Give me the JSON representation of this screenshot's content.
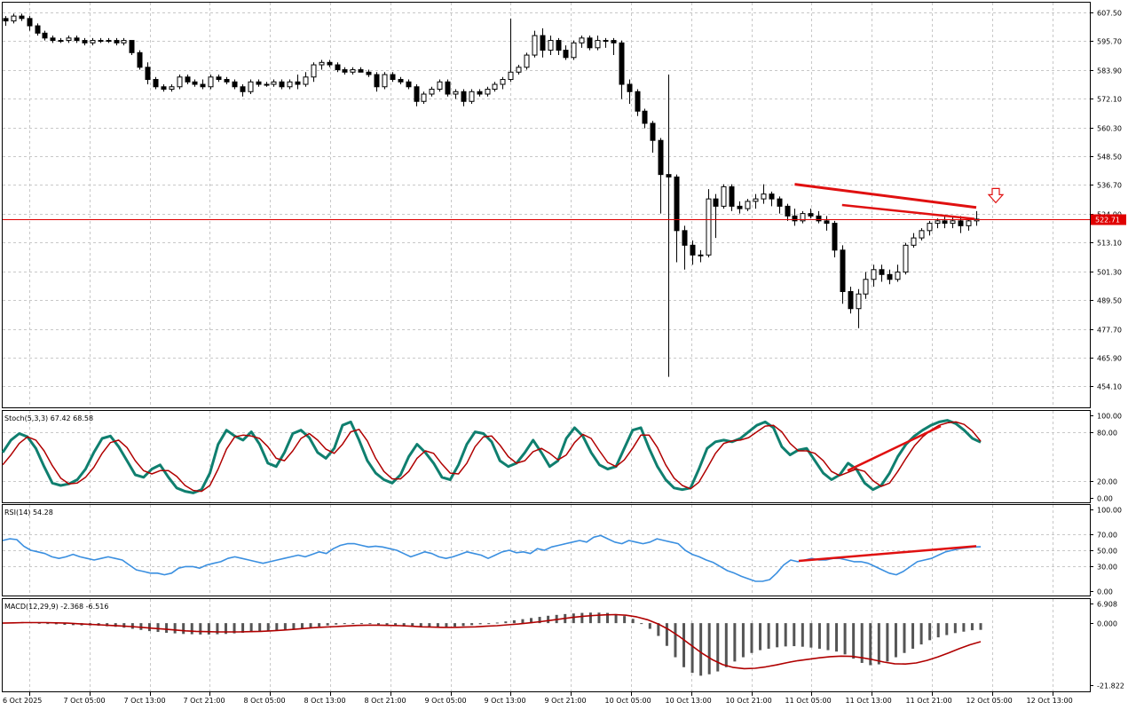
{
  "chart_data": {
    "type": "candlestick",
    "symbol_panel": {
      "price_axis_ticks": [
        "607.50",
        "595.70",
        "583.90",
        "572.10",
        "560.30",
        "548.50",
        "536.70",
        "524.90",
        "513.10",
        "501.30",
        "489.50",
        "477.70",
        "465.90",
        "454.10"
      ],
      "current_price": "522.71",
      "current_price_value": 522.71,
      "ylim": [
        445.5,
        611.5
      ],
      "grid": true,
      "candles": [
        [
          605,
          606,
          602,
          604
        ],
        [
          604,
          607,
          603,
          606
        ],
        [
          606,
          607,
          604,
          605
        ],
        [
          605,
          606,
          600,
          602
        ],
        [
          602,
          603,
          598,
          599
        ],
        [
          599,
          600,
          596,
          597
        ],
        [
          597,
          598,
          595,
          596
        ],
        [
          596,
          597,
          595,
          596
        ],
        [
          596,
          598,
          595,
          597
        ],
        [
          597,
          598,
          595,
          596
        ],
        [
          596,
          597,
          594,
          595
        ],
        [
          595,
          597,
          594,
          596
        ],
        [
          596,
          597,
          595,
          596
        ],
        [
          596,
          597,
          595,
          596
        ],
        [
          596,
          597,
          594,
          595
        ],
        [
          595,
          597,
          594,
          596
        ],
        [
          596,
          596,
          590,
          591
        ],
        [
          591,
          592,
          584,
          585
        ],
        [
          585,
          587,
          578,
          580
        ],
        [
          580,
          581,
          576,
          577
        ],
        [
          577,
          578,
          575,
          576
        ],
        [
          576,
          578,
          575,
          577
        ],
        [
          577,
          582,
          576,
          581
        ],
        [
          581,
          582,
          578,
          579
        ],
        [
          579,
          580,
          577,
          578
        ],
        [
          578,
          580,
          576,
          577
        ],
        [
          577,
          582,
          576,
          581
        ],
        [
          581,
          582,
          579,
          580
        ],
        [
          580,
          581,
          578,
          579
        ],
        [
          579,
          580,
          576,
          577
        ],
        [
          577,
          578,
          573,
          575
        ],
        [
          575,
          580,
          574,
          579
        ],
        [
          579,
          580,
          577,
          578
        ],
        [
          578,
          579,
          577,
          578
        ],
        [
          578,
          580,
          577,
          579
        ],
        [
          579,
          580,
          576,
          577
        ],
        [
          577,
          580,
          576,
          579
        ],
        [
          579,
          582,
          576,
          578
        ],
        [
          578,
          583,
          577,
          581
        ],
        [
          581,
          587,
          579,
          586
        ],
        [
          586,
          588,
          584,
          587
        ],
        [
          587,
          588,
          585,
          586
        ],
        [
          586,
          587,
          583,
          584
        ],
        [
          584,
          585,
          582,
          583
        ],
        [
          583,
          585,
          582,
          584
        ],
        [
          584,
          585,
          583,
          583
        ],
        [
          583,
          584,
          581,
          582
        ],
        [
          582,
          583,
          575,
          577
        ],
        [
          577,
          583,
          576,
          582
        ],
        [
          582,
          583,
          579,
          580
        ],
        [
          580,
          581,
          578,
          579
        ],
        [
          579,
          580,
          576,
          577
        ],
        [
          577,
          578,
          569,
          571
        ],
        [
          571,
          575,
          570,
          574
        ],
        [
          574,
          577,
          573,
          576
        ],
        [
          576,
          580,
          575,
          579
        ],
        [
          579,
          580,
          573,
          574
        ],
        [
          574,
          576,
          572,
          575
        ],
        [
          575,
          576,
          569,
          571
        ],
        [
          571,
          576,
          570,
          575
        ],
        [
          575,
          576,
          573,
          574
        ],
        [
          574,
          577,
          573,
          576
        ],
        [
          576,
          579,
          575,
          578
        ],
        [
          578,
          581,
          576,
          580
        ],
        [
          580,
          605,
          579,
          583
        ],
        [
          583,
          586,
          582,
          585
        ],
        [
          585,
          591,
          584,
          590
        ],
        [
          590,
          600,
          589,
          598
        ],
        [
          598,
          601,
          589,
          592
        ],
        [
          592,
          598,
          590,
          596
        ],
        [
          596,
          597,
          590,
          592
        ],
        [
          592,
          594,
          588,
          589
        ],
        [
          589,
          596,
          588,
          595
        ],
        [
          595,
          598,
          593,
          597
        ],
        [
          597,
          598,
          592,
          593
        ],
        [
          593,
          598,
          592,
          596
        ],
        [
          596,
          597,
          593,
          596
        ],
        [
          596,
          597,
          590,
          595
        ],
        [
          595,
          596,
          572,
          578
        ],
        [
          578,
          580,
          570,
          575
        ],
        [
          575,
          576,
          565,
          567
        ],
        [
          567,
          568,
          560,
          562
        ],
        [
          562,
          563,
          550,
          555
        ],
        [
          555,
          556,
          525,
          541
        ],
        [
          541,
          582,
          458,
          540
        ],
        [
          540,
          541,
          505,
          518
        ],
        [
          518,
          520,
          502,
          512
        ],
        [
          512,
          514,
          504,
          508
        ],
        [
          508,
          510,
          505,
          508
        ],
        [
          508,
          535,
          507,
          531
        ],
        [
          531,
          533,
          515,
          528
        ],
        [
          528,
          537,
          527,
          536
        ],
        [
          536,
          537,
          526,
          528
        ],
        [
          528,
          530,
          525,
          527
        ],
        [
          527,
          531,
          526,
          530
        ],
        [
          530,
          533,
          527,
          531
        ],
        [
          531,
          537,
          529,
          533
        ],
        [
          533,
          534,
          528,
          531
        ],
        [
          531,
          532,
          525,
          528
        ],
        [
          528,
          529,
          522,
          524
        ],
        [
          524,
          527,
          520,
          522
        ],
        [
          522,
          526,
          521,
          525
        ],
        [
          525,
          527,
          523,
          524
        ],
        [
          524,
          526,
          521,
          522
        ],
        [
          522,
          524,
          518,
          521
        ],
        [
          521,
          522,
          507,
          510
        ],
        [
          510,
          512,
          488,
          493
        ],
        [
          493,
          495,
          484,
          486
        ],
        [
          486,
          494,
          478,
          492
        ],
        [
          492,
          501,
          490,
          498
        ],
        [
          498,
          504,
          495,
          502
        ],
        [
          502,
          504,
          497,
          500
        ],
        [
          500,
          502,
          496,
          498
        ],
        [
          498,
          504,
          497,
          501
        ],
        [
          501,
          513,
          500,
          512
        ],
        [
          512,
          517,
          511,
          515
        ],
        [
          515,
          519,
          514,
          518
        ],
        [
          518,
          522,
          516,
          521
        ],
        [
          521,
          523,
          519,
          522
        ],
        [
          522,
          524,
          519,
          521
        ],
        [
          521,
          524,
          519,
          522
        ],
        [
          522,
          524,
          517,
          520
        ],
        [
          520,
          523,
          518,
          522
        ],
        [
          522,
          526,
          520,
          522.71
        ]
      ],
      "annotations": [
        "red bearish trend line (price)",
        "red arrow down marker"
      ]
    },
    "stochastic": {
      "label": "Stoch(5,3,3) 67.42 68.58",
      "axis_ticks": [
        "100.00",
        "80.00",
        "20.00",
        "0.00"
      ],
      "ylim": [
        0,
        100
      ],
      "main_color": "#0f7f6f",
      "signal_color": "#b00000",
      "main": [
        55,
        70,
        78,
        74,
        60,
        38,
        18,
        15,
        17,
        22,
        35,
        55,
        72,
        75,
        62,
        45,
        28,
        25,
        35,
        40,
        25,
        12,
        8,
        6,
        10,
        30,
        65,
        82,
        75,
        70,
        80,
        65,
        42,
        38,
        55,
        78,
        82,
        73,
        55,
        48,
        60,
        88,
        92,
        70,
        45,
        30,
        22,
        18,
        28,
        50,
        65,
        55,
        42,
        25,
        22,
        40,
        65,
        80,
        78,
        68,
        45,
        38,
        42,
        55,
        70,
        55,
        38,
        45,
        72,
        85,
        75,
        55,
        40,
        35,
        38,
        60,
        82,
        85,
        60,
        38,
        22,
        12,
        10,
        12,
        35,
        60,
        68,
        70,
        68,
        72,
        80,
        88,
        92,
        85,
        62,
        52,
        58,
        60,
        45,
        30,
        22,
        28,
        42,
        35,
        18,
        10,
        15,
        30,
        50,
        65,
        75,
        82,
        88,
        92,
        94,
        90,
        82,
        72,
        67.42
      ],
      "signal": [
        40,
        52,
        66,
        74,
        70,
        57,
        39,
        24,
        17,
        18,
        25,
        37,
        54,
        67,
        70,
        61,
        45,
        33,
        29,
        33,
        33,
        26,
        15,
        9,
        8,
        15,
        35,
        59,
        74,
        76,
        75,
        72,
        62,
        48,
        45,
        57,
        72,
        78,
        70,
        59,
        54,
        65,
        80,
        83,
        69,
        48,
        32,
        23,
        23,
        32,
        48,
        57,
        54,
        41,
        30,
        29,
        42,
        62,
        74,
        75,
        64,
        50,
        42,
        45,
        56,
        60,
        54,
        46,
        52,
        67,
        77,
        72,
        57,
        43,
        38,
        46,
        60,
        76,
        76,
        61,
        40,
        24,
        15,
        11,
        19,
        36,
        54,
        66,
        69,
        70,
        73,
        80,
        87,
        88,
        80,
        66,
        57,
        57,
        54,
        45,
        32,
        27,
        31,
        35,
        32,
        21,
        14,
        18,
        32,
        48,
        63,
        74,
        82,
        88,
        91,
        92,
        89,
        81,
        68.58
      ]
    },
    "rsi": {
      "label": "RSI(14) 54.28",
      "axis_ticks": [
        "100.00",
        "70.00",
        "50.00",
        "30.00",
        "0.00"
      ],
      "ylim": [
        0,
        100
      ],
      "color": "#3a8fe0",
      "values": [
        62,
        64,
        63,
        55,
        50,
        48,
        46,
        42,
        40,
        42,
        45,
        42,
        40,
        38,
        40,
        42,
        40,
        38,
        32,
        26,
        24,
        22,
        22,
        20,
        22,
        28,
        30,
        30,
        28,
        32,
        34,
        36,
        40,
        42,
        40,
        38,
        36,
        34,
        36,
        38,
        40,
        42,
        44,
        42,
        45,
        48,
        46,
        52,
        56,
        58,
        58,
        56,
        54,
        55,
        54,
        52,
        50,
        46,
        42,
        45,
        48,
        46,
        42,
        40,
        42,
        45,
        48,
        46,
        44,
        40,
        44,
        48,
        50,
        47,
        48,
        46,
        52,
        50,
        54,
        56,
        58,
        60,
        62,
        60,
        66,
        68,
        64,
        60,
        58,
        62,
        60,
        58,
        60,
        64,
        62,
        60,
        58,
        50,
        45,
        42,
        38,
        35,
        30,
        25,
        22,
        18,
        15,
        12,
        12,
        14,
        22,
        32,
        38,
        36,
        38,
        40,
        38,
        38,
        40,
        40,
        38,
        36,
        36,
        34,
        30,
        26,
        22,
        20,
        24,
        30,
        36,
        38,
        40,
        44,
        48,
        50,
        52,
        53,
        54,
        54.28
      ],
      "annotations": [
        "red bullish trend line (RSI divergence)"
      ]
    },
    "macd": {
      "label": "MACD(12,29,9) -2.368 -6.516",
      "axis_ticks": [
        "6.908",
        "0.000",
        "-21.822"
      ],
      "ylim": [
        -21.822,
        6.908
      ],
      "histogram_color": "#555555",
      "signal_color": "#b00000",
      "histogram": [
        0.2,
        0.3,
        0.4,
        0.3,
        0.1,
        -0.2,
        -0.4,
        -0.6,
        -0.7,
        -0.8,
        -0.8,
        -0.9,
        -1.1,
        -1.3,
        -1.6,
        -2,
        -2.4,
        -2.8,
        -3.1,
        -3.4,
        -3.6,
        -3.8,
        -3.9,
        -4,
        -4,
        -3.9,
        -3.8,
        -3.6,
        -3.4,
        -3.2,
        -3,
        -2.8,
        -2.6,
        -2.5,
        -2.3,
        -2,
        -1.6,
        -1.2,
        -0.8,
        -0.5,
        -0.3,
        -0.2,
        -0.2,
        -0.3,
        -0.5,
        -0.8,
        -1,
        -1.2,
        -1.3,
        -1.4,
        -1.5,
        -1.5,
        -1.4,
        -1.2,
        -1,
        -0.7,
        -0.4,
        -0.1,
        0.2,
        0.6,
        1,
        1.4,
        1.8,
        2.2,
        2.6,
        2.9,
        3.2,
        3.4,
        3.6,
        3.7,
        3.7,
        3.6,
        3.2,
        2.5,
        1.5,
        0,
        -2,
        -4.5,
        -8,
        -12,
        -15.5,
        -17.5,
        -18.5,
        -18,
        -17,
        -15.5,
        -13.5,
        -12,
        -10.5,
        -9.5,
        -9,
        -8.5,
        -8.2,
        -8.1,
        -8.3,
        -8.6,
        -9,
        -9.5,
        -10,
        -11,
        -12.5,
        -14,
        -14.8,
        -14.5,
        -13.5,
        -12,
        -10.5,
        -9,
        -7.5,
        -6,
        -5,
        -4.2,
        -3.5,
        -3,
        -2.5,
        -2.368
      ],
      "signal": [
        0,
        0.1,
        0.2,
        0.2,
        0.2,
        0.1,
        0,
        -0.2,
        -0.4,
        -0.6,
        -0.8,
        -1,
        -1.2,
        -1.5,
        -1.8,
        -2.1,
        -2.4,
        -2.7,
        -2.9,
        -3,
        -3.1,
        -3.1,
        -3.1,
        -3,
        -2.9,
        -2.7,
        -2.5,
        -2.2,
        -1.9,
        -1.6,
        -1.4,
        -1.2,
        -1,
        -0.8,
        -0.7,
        -0.7,
        -0.8,
        -0.9,
        -1.1,
        -1.3,
        -1.4,
        -1.5,
        -1.5,
        -1.4,
        -1.3,
        -1.1,
        -0.9,
        -0.6,
        -0.3,
        0.1,
        0.5,
        1,
        1.5,
        2,
        2.4,
        2.7,
        2.9,
        3,
        2.8,
        2.2,
        1.2,
        -0.3,
        -2.3,
        -4.8,
        -7.6,
        -10.4,
        -12.8,
        -14.6,
        -15.6,
        -16,
        -15.9,
        -15.4,
        -14.7,
        -13.9,
        -13.2,
        -12.7,
        -12.2,
        -11.8,
        -11.6,
        -11.7,
        -12.2,
        -12.9,
        -13.7,
        -14.3,
        -14.4,
        -14,
        -13.1,
        -11.9,
        -10.5,
        -9,
        -7.6,
        -6.516
      ]
    },
    "time_axis_ticks": [
      "6 Oct 2025",
      "7 Oct 05:00",
      "7 Oct 13:00",
      "7 Oct 21:00",
      "8 Oct 05:00",
      "8 Oct 13:00",
      "8 Oct 21:00",
      "9 Oct 05:00",
      "9 Oct 13:00",
      "9 Oct 21:00",
      "10 Oct 05:00",
      "10 Oct 13:00",
      "10 Oct 21:00",
      "11 Oct 05:00",
      "11 Oct 13:00",
      "11 Oct 21:00",
      "12 Oct 05:00",
      "12 Oct 13:00"
    ],
    "colors": {
      "price_line": "#e00000",
      "trend_line": "#e01010",
      "grid": "#c8c8c8",
      "axis": "#000000"
    }
  }
}
